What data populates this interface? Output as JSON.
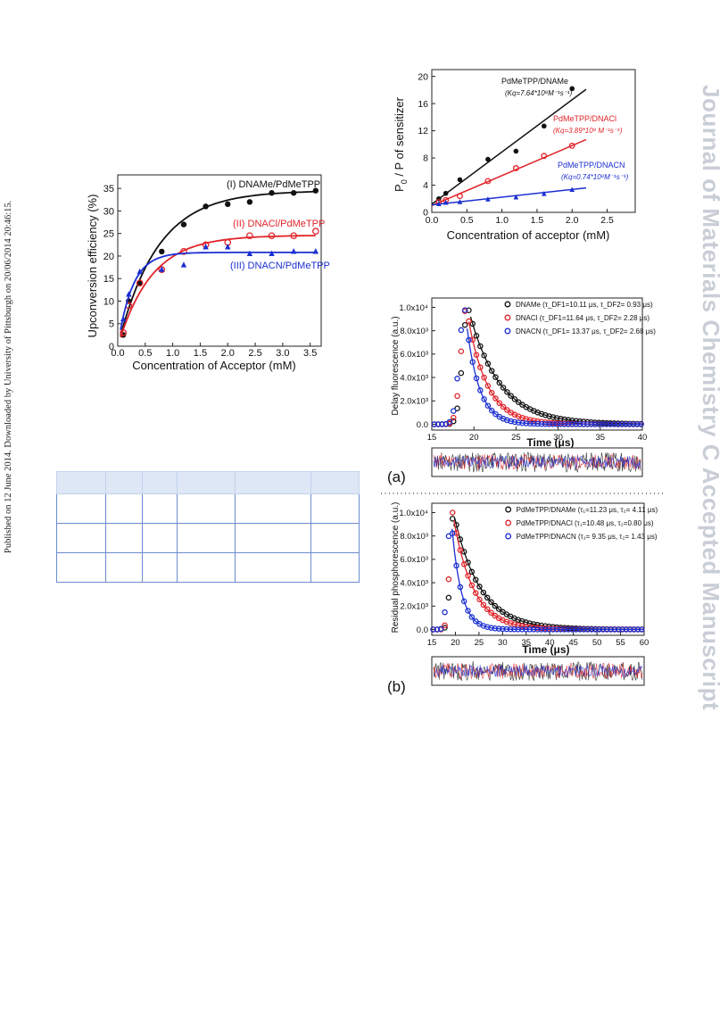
{
  "side_text_left": "Published on 12 June 2014. Downloaded by University of Pittsburgh on 20/06/2014 20:46:15.",
  "side_text_right": "Journal of Materials Chemistry C Accepted Manuscript",
  "chart_data": [
    {
      "type": "scatter",
      "panel": "upconversion",
      "xlabel": "Concentration of Acceptor (mM)",
      "ylabel": "Upconversion efficiency (%)",
      "xlim": [
        0,
        3.7
      ],
      "ylim": [
        0,
        38
      ],
      "xticks": [
        "0.0",
        "0.5",
        "1.0",
        "1.5",
        "2.0",
        "2.5",
        "3.0",
        "3.5"
      ],
      "yticks": [
        "0",
        "5",
        "10",
        "15",
        "20",
        "25",
        "30",
        "35"
      ],
      "series": [
        {
          "name": "(I) DNAMe/PdMeTPP",
          "color": "#111111",
          "marker": "filled-circle",
          "x": [
            0.1,
            0.2,
            0.4,
            0.8,
            1.2,
            1.6,
            2.0,
            2.4,
            2.8,
            3.2,
            3.6
          ],
          "y": [
            2.5,
            10,
            14,
            21,
            27,
            31,
            31.5,
            32,
            34,
            34,
            34.5
          ],
          "fit": {
            "a": 34.5,
            "k": 1.4
          }
        },
        {
          "name": "(II) DNACl/PdMeTPP",
          "color": "#e0242a",
          "marker": "open-circle",
          "x": [
            0.1,
            0.2,
            0.4,
            0.8,
            1.2,
            1.6,
            2.0,
            2.4,
            2.8,
            3.2,
            3.6
          ],
          "y": [
            3,
            9,
            14,
            17,
            21,
            22.5,
            23,
            24.5,
            24.5,
            24.5,
            25.5
          ],
          "fit": {
            "a": 24.6,
            "k": 1.65
          }
        },
        {
          "name": "(III) DNACN/PdMeTPP",
          "color": "#1b2fd1",
          "marker": "filled-triangle",
          "x": [
            0.1,
            0.2,
            0.4,
            0.8,
            1.2,
            1.6,
            2.0,
            2.4,
            2.8,
            3.2,
            3.6
          ],
          "y": [
            6,
            11.5,
            16.5,
            17,
            18,
            22,
            22,
            20.5,
            20.5,
            21,
            21
          ],
          "fit": {
            "a": 20.8,
            "k": 3.8
          }
        }
      ]
    },
    {
      "type": "scatter",
      "panel": "stern-volmer",
      "xlabel": "Concentration of acceptor (mM)",
      "ylabel": "P",
      "ylabel_sub": "0",
      "ylabel_rest": " / P of sensitizer",
      "xlim": [
        0,
        2.9
      ],
      "ylim": [
        0,
        21
      ],
      "xticks": [
        "0.0",
        "0.5",
        "1.0",
        "1.5",
        "2.0",
        "2.5"
      ],
      "yticks": [
        "0",
        "4",
        "8",
        "12",
        "16",
        "20"
      ],
      "series": [
        {
          "name": "PdMeTPP/DNAMe",
          "kq": "(Kq=7.64*10⁸M⁻¹s⁻¹)",
          "color": "#111111",
          "marker": "filled-circle",
          "x": [
            0.1,
            0.2,
            0.4,
            0.8,
            1.2,
            1.6,
            2.0
          ],
          "y": [
            2.0,
            2.8,
            4.8,
            7.8,
            9,
            12.7,
            18.2
          ],
          "line": [
            [
              0,
              1.2
            ],
            [
              2.2,
              18.1
            ]
          ]
        },
        {
          "name": "PdMeTPP/DNACl",
          "kq": "(Kq=3.89*10⁸ M⁻¹s⁻¹)",
          "color": "#e0242a",
          "marker": "open-circle",
          "x": [
            0.1,
            0.2,
            0.4,
            0.8,
            1.2,
            1.6,
            2.0
          ],
          "y": [
            1.5,
            1.8,
            2.4,
            4.6,
            6.5,
            8.3,
            9.8
          ],
          "line": [
            [
              0,
              1.0
            ],
            [
              2.2,
              10.7
            ]
          ]
        },
        {
          "name": "PdMeTPP/DNACN",
          "kq": "(Kq=0.74*10⁸M⁻¹s⁻¹)",
          "color": "#1b2fd1",
          "marker": "filled-triangle",
          "x": [
            0.1,
            0.2,
            0.4,
            0.8,
            1.2,
            1.6,
            2.0
          ],
          "y": [
            1.2,
            1.4,
            1.5,
            1.9,
            2.2,
            2.7,
            3.3
          ],
          "line": [
            [
              0,
              1.1
            ],
            [
              2.2,
              3.6
            ]
          ]
        }
      ]
    },
    {
      "type": "scatter",
      "panel": "a",
      "panel_label": "(a)",
      "xlabel": "Time (μs)",
      "ylabel": "Delay fluorescence (a.u.)",
      "xlim": [
        15,
        40
      ],
      "ylim": [
        -0.05,
        1.08
      ],
      "xticks": [
        "15",
        "20",
        "25",
        "30",
        "35",
        "40"
      ],
      "yticks": [
        "0.0",
        "2.0x10³",
        "4.0x10³",
        "6.0x10³",
        "8.0x10³",
        "1.0x10⁴"
      ],
      "ytick_values": [
        0,
        0.2,
        0.4,
        0.6,
        0.8,
        1.0
      ],
      "series": [
        {
          "name": "DNAMe",
          "legend": "DNAMe (τ_DF1=10.11 μs, τ_DF2= 0.93 μs)",
          "color": "#111111",
          "peak": 19.3,
          "tau": 3.6
        },
        {
          "name": "DNACl",
          "legend": "DNACl  (τ_DF1=11.64 μs, τ_DF2= 2.28 μs)",
          "color": "#e0242a",
          "peak": 19.1,
          "tau": 2.3
        },
        {
          "name": "DNACN",
          "legend": "DNACN (τ_DF1= 13.37 μs, τ_DF2= 2.68 μs)",
          "color": "#1b2fd1",
          "peak": 18.9,
          "tau": 1.5
        }
      ]
    },
    {
      "type": "scatter",
      "panel": "b",
      "panel_label": "(b)",
      "xlabel": "Time (μs)",
      "ylabel": "Residual phosphorescence (a.u.)",
      "xlim": [
        15,
        60
      ],
      "ylim": [
        -0.05,
        1.08
      ],
      "xticks": [
        "15",
        "20",
        "25",
        "30",
        "35",
        "40",
        "45",
        "50",
        "55",
        "60"
      ],
      "yticks": [
        "0.0",
        "2.0x10³",
        "4.0x10³",
        "6.0x10³",
        "8.0x10³",
        "1.0x10⁴"
      ],
      "ytick_values": [
        0,
        0.2,
        0.4,
        0.6,
        0.8,
        1.0
      ],
      "series": [
        {
          "name": "PdMeTPP/DNAMe",
          "legend": "PdMeTPP/DNAMe (τ₁=11.23 μs, τ₂= 4.11 μs)",
          "color": "#111111",
          "peak": 19.6,
          "tau": 5.5
        },
        {
          "name": "PdMeTPP/DNACl",
          "legend": "PdMeTPP/DNACl  (τ₁=10.48 μs, τ₂=0.80 μs)",
          "color": "#e0242a",
          "peak": 19.4,
          "tau": 4.2
        },
        {
          "name": "PdMeTPP/DNACN",
          "legend": "PdMeTPP/DNACN (τ₁= 9.35 μs, τ₂= 1.43 μs)",
          "color": "#1b2fd1",
          "peak": 19.0,
          "tau": 2.0
        }
      ]
    }
  ]
}
